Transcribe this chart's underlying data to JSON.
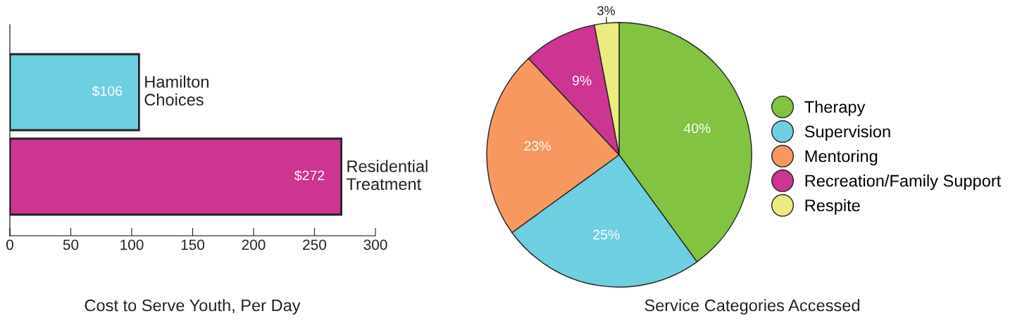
{
  "chart_data": [
    {
      "type": "bar",
      "orientation": "horizontal",
      "title": "Cost to Serve Youth, Per Day",
      "categories": [
        "Hamilton\nChoices",
        "Residential\nTreatment"
      ],
      "values": [
        106,
        272
      ],
      "colors": [
        "#6dcfe0",
        "#cc3591"
      ],
      "value_labels": [
        "$106",
        "$272"
      ],
      "xlim": [
        0,
        300
      ],
      "xticks": [
        0,
        50,
        100,
        150,
        200,
        250,
        300
      ],
      "grid": false
    },
    {
      "type": "pie",
      "title": "Service Categories Accessed",
      "categories": [
        "Therapy",
        "Supervision",
        "Mentoring",
        "Recreation/Family Support",
        "Respite"
      ],
      "values": [
        40,
        25,
        23,
        9,
        3
      ],
      "colors": [
        "#82c341",
        "#6dcfe0",
        "#f79860",
        "#cc3591",
        "#ebeb80"
      ],
      "value_labels": [
        "40%",
        "25%",
        "23%",
        "9%",
        "3%"
      ],
      "legend": "right"
    }
  ]
}
